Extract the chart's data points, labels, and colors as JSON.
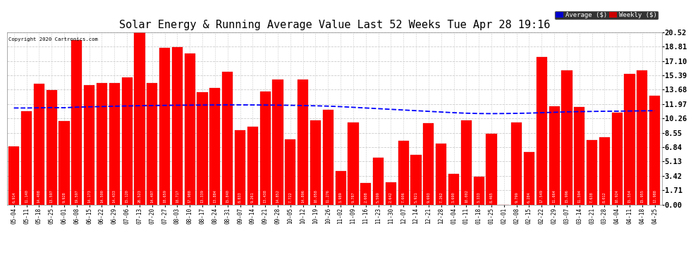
{
  "title": "Solar Energy & Running Average Value Last 52 Weeks Tue Apr 28 19:16",
  "copyright": "Copyright 2020 Cartronics.com",
  "bar_color": "#FF0000",
  "avg_line_color": "#0000FF",
  "background_color": "#FFFFFF",
  "grid_color": "#CCCCCC",
  "legend_avg_bg": "#0000CD",
  "legend_weekly_bg": "#CC0000",
  "categories": [
    "05-04",
    "05-11",
    "05-18",
    "05-25",
    "06-01",
    "06-08",
    "06-15",
    "06-22",
    "06-29",
    "07-06",
    "07-13",
    "07-20",
    "07-27",
    "08-03",
    "08-10",
    "08-17",
    "08-24",
    "08-31",
    "09-07",
    "09-14",
    "09-21",
    "09-28",
    "10-05",
    "10-12",
    "10-19",
    "10-26",
    "11-02",
    "11-09",
    "11-16",
    "11-23",
    "11-30",
    "12-07",
    "12-14",
    "12-21",
    "12-28",
    "01-04",
    "01-11",
    "01-18",
    "01-25",
    "02-01",
    "02-08",
    "02-15",
    "02-22",
    "02-29",
    "03-07",
    "03-14",
    "03-21",
    "03-28",
    "04-04",
    "04-11",
    "04-18",
    "04-25"
  ],
  "weekly_values": [
    6.914,
    11.14,
    14.408,
    13.597,
    9.928,
    19.597,
    14.173,
    14.5,
    14.433,
    15.12,
    20.523,
    14.497,
    18.659,
    18.717,
    17.988,
    13.339,
    13.884,
    15.84,
    8.833,
    9.261,
    13.438,
    14.852,
    7.722,
    14.896,
    10.058,
    11.276,
    3.989,
    9.787,
    2.608,
    5.599,
    2.642,
    7.606,
    5.921,
    9.693,
    7.262,
    3.69,
    10.002,
    3.333,
    8.465,
    0.008,
    9.799,
    6.284,
    17.549,
    11.664,
    15.996,
    11.594,
    7.638,
    8.012,
    10.924,
    15.554,
    15.955,
    12.988
  ],
  "avg_values": [
    11.5,
    11.5,
    11.52,
    11.55,
    11.53,
    11.6,
    11.64,
    11.67,
    11.71,
    11.74,
    11.77,
    11.79,
    11.81,
    11.83,
    11.84,
    11.85,
    11.86,
    11.87,
    11.87,
    11.86,
    11.85,
    11.84,
    11.82,
    11.79,
    11.76,
    11.72,
    11.66,
    11.58,
    11.5,
    11.42,
    11.34,
    11.26,
    11.18,
    11.1,
    11.02,
    10.94,
    10.88,
    10.84,
    10.83,
    10.84,
    10.86,
    10.89,
    10.94,
    10.99,
    11.04,
    11.07,
    11.09,
    11.11,
    11.12,
    11.14,
    11.16,
    11.18
  ],
  "ytick_values": [
    0.0,
    1.71,
    3.42,
    5.13,
    6.84,
    8.55,
    10.26,
    11.97,
    13.68,
    15.39,
    17.1,
    18.81,
    20.52
  ],
  "ylim_max": 20.52,
  "title_fontsize": 11,
  "label_fontsize": 5.5,
  "value_fontsize": 3.8,
  "ytick_fontsize": 7.5
}
